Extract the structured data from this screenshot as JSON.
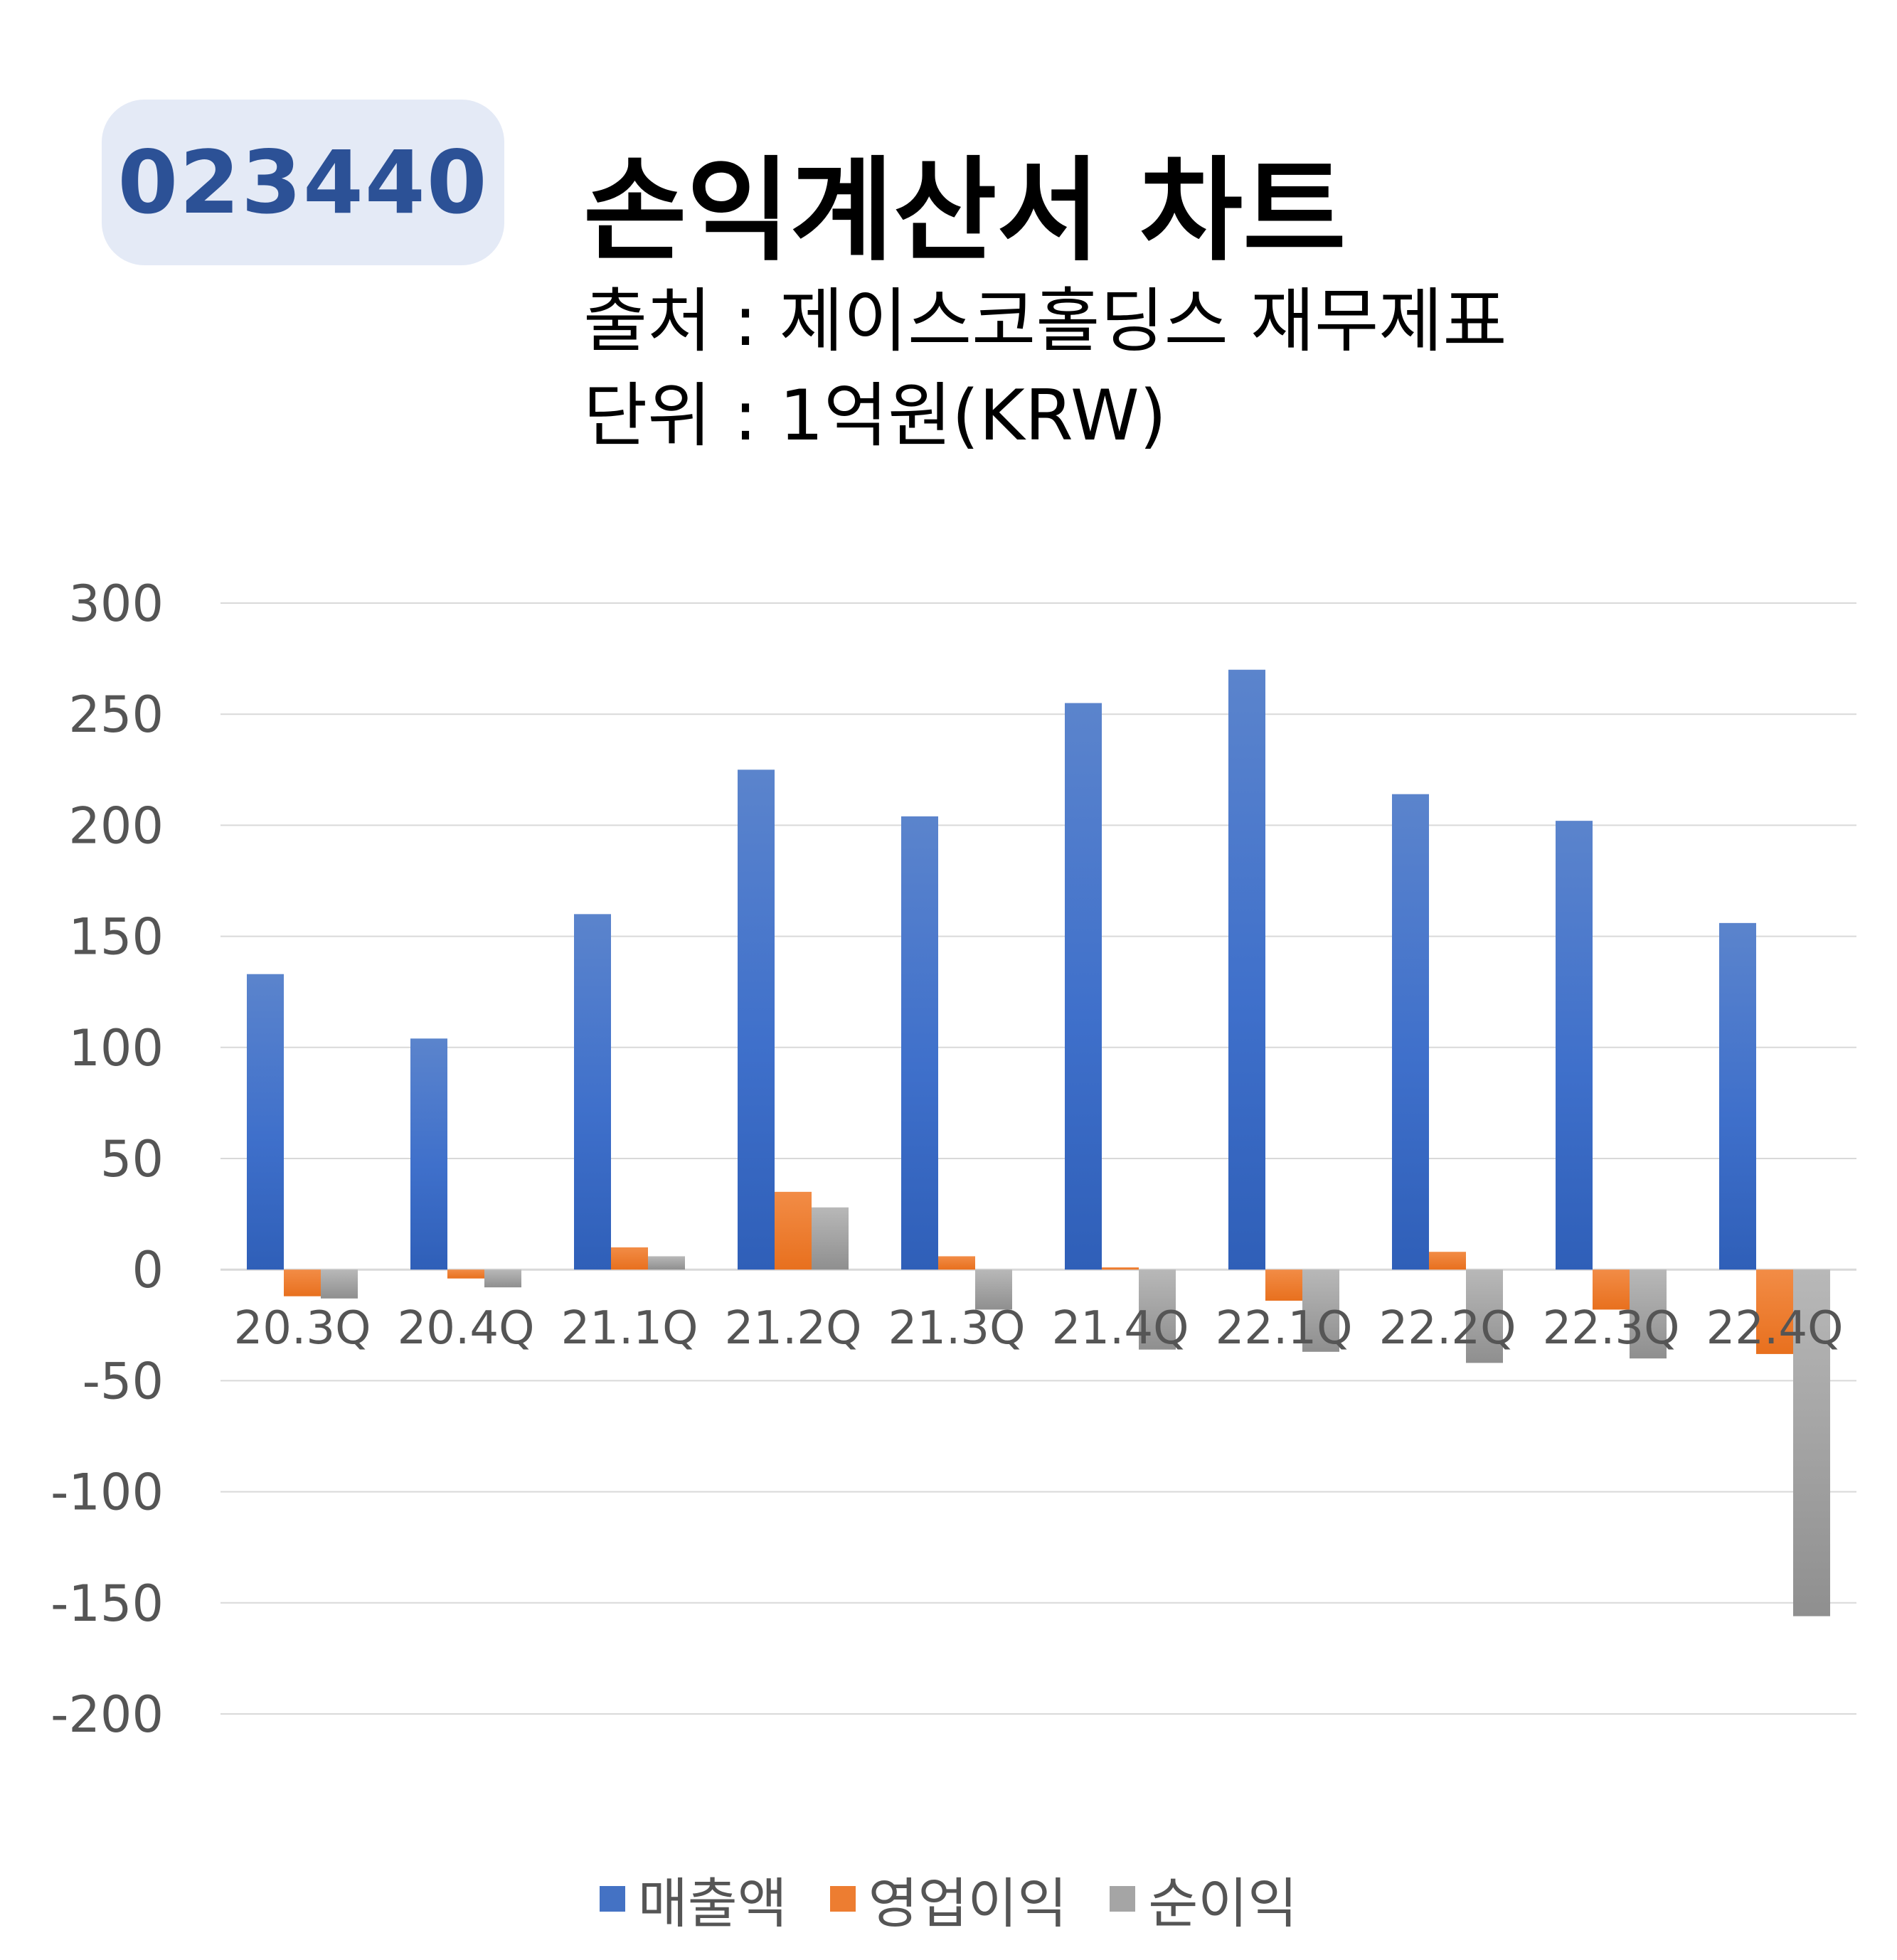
{
  "badge": {
    "code": "023440"
  },
  "header": {
    "title": "손익계산서 차트",
    "source": "출처 : 제이스코홀딩스 재무제표",
    "unit": "단위 : 1억원(KRW)"
  },
  "colors": {
    "sales": "#4472c4",
    "operating": "#ed7d31",
    "net": "#a5a5a5",
    "grid": "#d9d9d9"
  },
  "chart_data": {
    "type": "bar",
    "categories": [
      "20.3Q",
      "20.4Q",
      "21.1Q",
      "21.2Q",
      "21.3Q",
      "21.4Q",
      "22.1Q",
      "22.2Q",
      "22.3Q",
      "22.4Q"
    ],
    "series": [
      {
        "name": "매출액",
        "values": [
          133,
          104,
          160,
          225,
          204,
          255,
          270,
          214,
          202,
          156
        ]
      },
      {
        "name": "영업이익",
        "values": [
          -12,
          -4,
          10,
          35,
          6,
          1,
          -14,
          8,
          -18,
          -38
        ]
      },
      {
        "name": "순이익",
        "values": [
          -13,
          -8,
          6,
          28,
          -18,
          -36,
          -37,
          -42,
          -40,
          -156
        ]
      }
    ],
    "yticks": [
      "300",
      "250",
      "200",
      "150",
      "100",
      "50",
      "0",
      "-50",
      "-100",
      "-150",
      "-200"
    ],
    "ylim": [
      -200,
      300
    ],
    "grid": true,
    "legend": "bottom"
  }
}
